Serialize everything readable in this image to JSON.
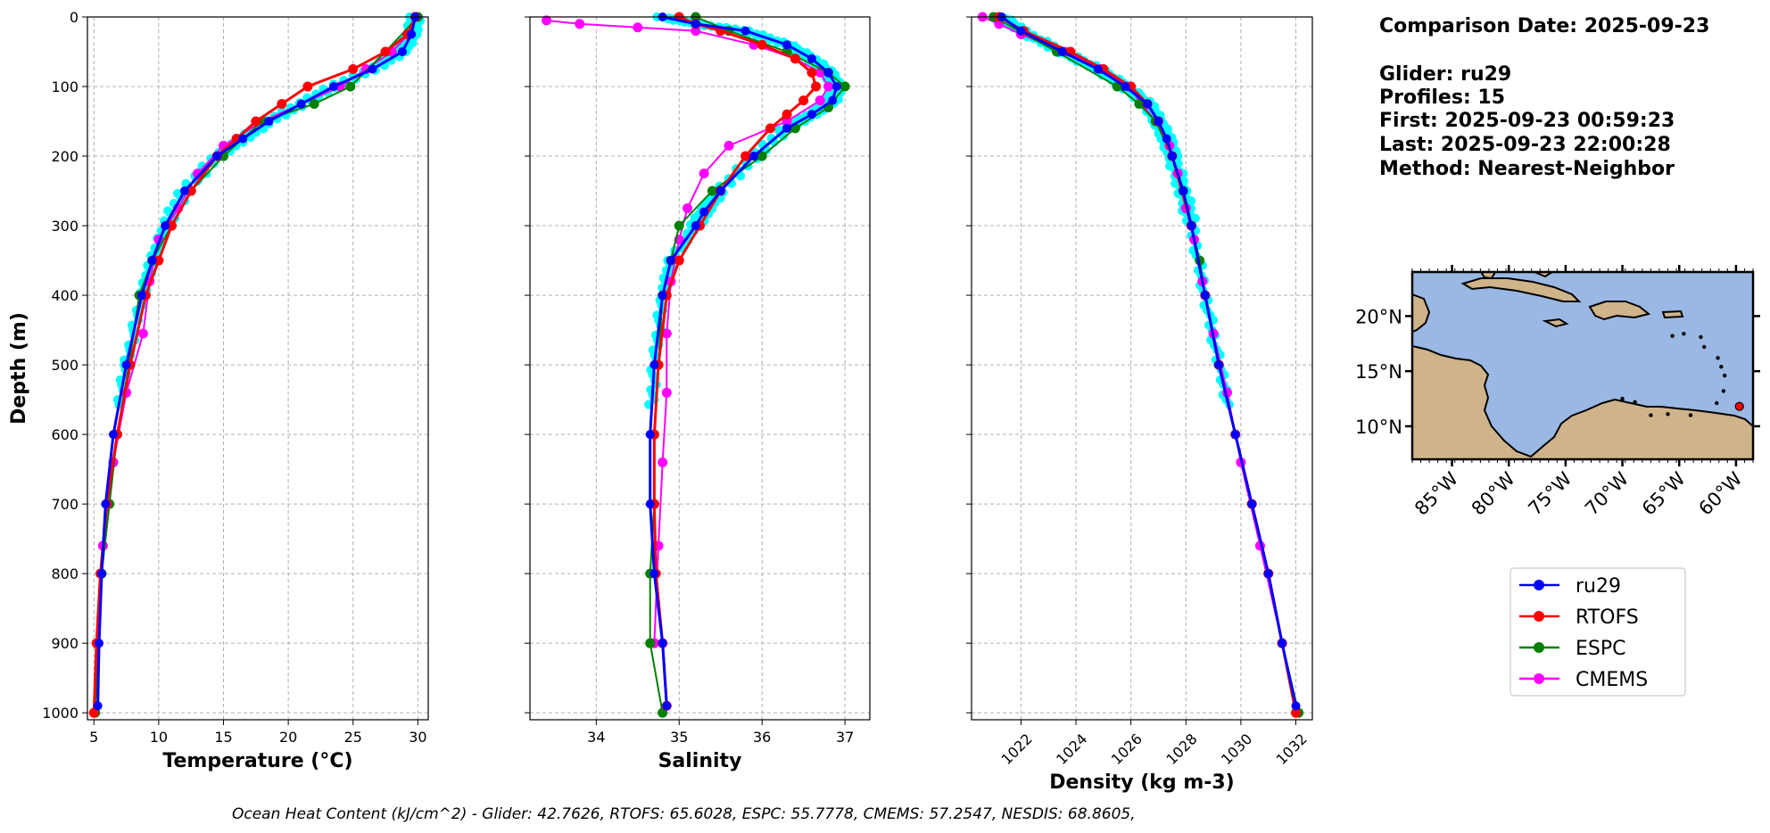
{
  "info": {
    "comparison_date": "Comparison Date: 2025-09-23",
    "glider": "Glider: ru29",
    "profiles": "Profiles: 15",
    "first": "First: 2025-09-23 00:59:23",
    "last": "Last: 2025-09-23 22:00:28",
    "method": "Method: Nearest-Neighbor"
  },
  "footer": "Ocean Heat Content (kJ/cm^2) - Glider: 42.7626,  RTOFS: 65.6028,  ESPC: 55.7778,  CMEMS: 57.2547,  NESDIS: 68.8605,",
  "colors": {
    "ru29": "#0000ff",
    "RTOFS": "#ff0000",
    "ESPC": "#008000",
    "CMEMS": "#ff00ff",
    "glider_raw": "#00ffff",
    "ocean": "#9ab8e3",
    "land": "#cfb38a"
  },
  "legend": [
    "ru29",
    "RTOFS",
    "ESPC",
    "CMEMS"
  ],
  "map": {
    "lat_ticks": [
      "20°N",
      "15°N",
      "10°N"
    ],
    "lon_ticks": [
      "85°W",
      "80°W",
      "75°W",
      "70°W",
      "65°W",
      "60°W"
    ],
    "glider_position": {
      "lon": -59.7,
      "lat": 11.8
    },
    "land_icon": "coastline-map"
  },
  "chart_data": [
    {
      "type": "line",
      "xlabel": "Temperature (°C)",
      "ylabel": "Depth (m)",
      "xlim": [
        4.5,
        30.8
      ],
      "ylim": [
        1010,
        0
      ],
      "xticks": [
        5,
        10,
        15,
        20,
        25,
        30
      ],
      "yticks": [
        0,
        100,
        200,
        300,
        400,
        500,
        600,
        700,
        800,
        900,
        1000
      ],
      "grid": true,
      "series": [
        {
          "name": "ru29",
          "depth": [
            0,
            25,
            50,
            75,
            100,
            125,
            150,
            175,
            200,
            250,
            300,
            350,
            400,
            500,
            600,
            700,
            800,
            900,
            990
          ],
          "values": [
            29.8,
            29.5,
            28.8,
            26.5,
            23.5,
            21.0,
            18.5,
            16.5,
            14.5,
            12.0,
            10.5,
            9.5,
            8.7,
            7.5,
            6.5,
            5.9,
            5.6,
            5.4,
            5.3
          ]
        },
        {
          "name": "RTOFS",
          "depth": [
            0,
            25,
            50,
            75,
            100,
            125,
            150,
            175,
            200,
            250,
            300,
            350,
            400,
            500,
            600,
            700,
            800,
            900,
            1000
          ],
          "values": [
            29.8,
            29.2,
            27.5,
            25.0,
            21.5,
            19.5,
            17.5,
            16.0,
            14.5,
            12.5,
            11.0,
            10.0,
            9.0,
            7.8,
            6.8,
            6.0,
            5.5,
            5.2,
            5.0
          ]
        },
        {
          "name": "ESPC",
          "depth": [
            0,
            50,
            100,
            125,
            150,
            200,
            250,
            300,
            350,
            400,
            500,
            600,
            700,
            800,
            900,
            1000
          ],
          "values": [
            30.0,
            27.5,
            24.8,
            22.0,
            18.0,
            15.0,
            12.5,
            11.0,
            9.5,
            8.5,
            7.7,
            6.8,
            6.2,
            5.6,
            5.3,
            5.1
          ]
        },
        {
          "name": "CMEMS",
          "depth": [
            0,
            25,
            50,
            75,
            100,
            150,
            185,
            225,
            275,
            320,
            380,
            455,
            540,
            640,
            760,
            900
          ],
          "values": [
            29.8,
            29.3,
            28.0,
            26.0,
            24.0,
            18.0,
            15.0,
            13.0,
            11.5,
            10.0,
            9.3,
            8.8,
            7.5,
            6.5,
            5.7,
            5.3
          ]
        }
      ]
    },
    {
      "type": "line",
      "xlabel": "Salinity",
      "ylabel": "",
      "xlim": [
        33.2,
        37.3
      ],
      "ylim": [
        1010,
        0
      ],
      "xticks": [
        34,
        35,
        36,
        37
      ],
      "grid": true,
      "series": [
        {
          "name": "ru29",
          "depth": [
            0,
            10,
            20,
            40,
            60,
            80,
            100,
            120,
            140,
            160,
            200,
            250,
            280,
            300,
            350,
            400,
            500,
            600,
            700,
            800,
            900,
            990
          ],
          "values": [
            34.8,
            35.2,
            35.8,
            36.3,
            36.6,
            36.8,
            36.9,
            36.85,
            36.6,
            36.3,
            35.9,
            35.5,
            35.3,
            35.2,
            34.9,
            34.8,
            34.7,
            34.65,
            34.65,
            34.7,
            34.8,
            34.85
          ]
        },
        {
          "name": "RTOFS",
          "depth": [
            0,
            10,
            20,
            40,
            60,
            80,
            100,
            120,
            140,
            160,
            200,
            250,
            300,
            350,
            400,
            500,
            600,
            700,
            800,
            900,
            990
          ],
          "values": [
            35.0,
            35.2,
            35.5,
            36.0,
            36.4,
            36.6,
            36.65,
            36.5,
            36.3,
            36.1,
            35.8,
            35.5,
            35.25,
            35.0,
            34.85,
            34.75,
            34.7,
            34.7,
            34.72,
            34.8,
            34.85
          ]
        },
        {
          "name": "ESPC",
          "depth": [
            0,
            20,
            50,
            80,
            100,
            130,
            160,
            200,
            250,
            300,
            350,
            400,
            500,
            600,
            700,
            800,
            900,
            1000
          ],
          "values": [
            35.2,
            35.6,
            36.3,
            36.8,
            37.0,
            36.8,
            36.4,
            36.0,
            35.4,
            35.0,
            34.9,
            34.8,
            34.75,
            34.7,
            34.7,
            34.65,
            34.65,
            34.8
          ]
        },
        {
          "name": "CMEMS",
          "depth": [
            5,
            10,
            15,
            20,
            40,
            60,
            80,
            100,
            120,
            150,
            185,
            225,
            275,
            320,
            380,
            455,
            540,
            640,
            760,
            900
          ],
          "values": [
            33.4,
            33.8,
            34.5,
            35.2,
            35.9,
            36.4,
            36.7,
            36.8,
            36.7,
            36.3,
            35.6,
            35.3,
            35.1,
            35.0,
            34.9,
            34.85,
            34.85,
            34.8,
            34.75,
            34.7
          ]
        }
      ]
    },
    {
      "type": "line",
      "xlabel": "Density (kg m-3)",
      "ylabel": "",
      "xlim": [
        1020.2,
        1032.6
      ],
      "ylim": [
        1010,
        0
      ],
      "xticks": [
        1022,
        1024,
        1026,
        1028,
        1030,
        1032
      ],
      "grid": true,
      "series": [
        {
          "name": "ru29",
          "depth": [
            0,
            20,
            50,
            75,
            100,
            125,
            150,
            175,
            200,
            250,
            300,
            400,
            500,
            600,
            700,
            800,
            900,
            990
          ],
          "values": [
            1021.3,
            1022.0,
            1023.5,
            1024.8,
            1025.8,
            1026.6,
            1027.0,
            1027.3,
            1027.5,
            1027.9,
            1028.2,
            1028.7,
            1029.2,
            1029.8,
            1030.4,
            1031.0,
            1031.5,
            1032.0
          ]
        },
        {
          "name": "RTOFS",
          "depth": [
            0,
            20,
            50,
            75,
            100,
            125,
            150,
            200,
            300,
            400,
            500,
            600,
            700,
            800,
            900,
            1000
          ],
          "values": [
            1021.2,
            1022.1,
            1023.8,
            1025.0,
            1026.0,
            1026.6,
            1027.0,
            1027.5,
            1028.2,
            1028.7,
            1029.2,
            1029.8,
            1030.4,
            1031.0,
            1031.5,
            1032.0
          ]
        },
        {
          "name": "ESPC",
          "depth": [
            0,
            50,
            100,
            125,
            150,
            200,
            250,
            300,
            350,
            400,
            500,
            600,
            700,
            800,
            900,
            1000
          ],
          "values": [
            1021.0,
            1023.3,
            1025.5,
            1026.3,
            1026.9,
            1027.5,
            1027.9,
            1028.2,
            1028.5,
            1028.7,
            1029.2,
            1029.8,
            1030.4,
            1031.0,
            1031.5,
            1032.1
          ]
        },
        {
          "name": "CMEMS",
          "depth": [
            0,
            10,
            25,
            50,
            75,
            100,
            150,
            185,
            225,
            275,
            320,
            380,
            455,
            540,
            640,
            760,
            900
          ],
          "values": [
            1020.6,
            1021.2,
            1022.0,
            1023.6,
            1024.9,
            1025.9,
            1026.9,
            1027.4,
            1027.7,
            1028.0,
            1028.3,
            1028.6,
            1029.0,
            1029.5,
            1030.0,
            1030.7,
            1031.5
          ]
        }
      ]
    }
  ]
}
